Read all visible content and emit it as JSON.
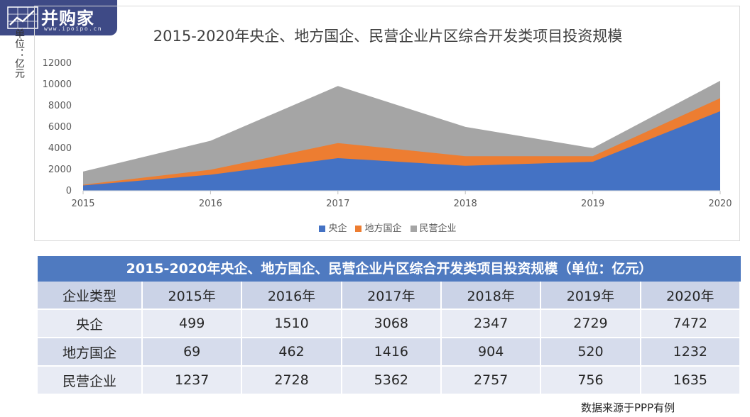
{
  "logo": {
    "name": "并购家",
    "site": "www.ipoipo.cn"
  },
  "unit_label": "单位：亿元",
  "chart_data": {
    "type": "area",
    "stacked": true,
    "title": "2015-2020年央企、地方国企、民营企业片区综合开发类项目投资规模",
    "x": [
      "2015",
      "2016",
      "2017",
      "2018",
      "2019",
      "2020"
    ],
    "ylim": [
      0,
      12000
    ],
    "yticks": [
      0,
      2000,
      4000,
      6000,
      8000,
      10000,
      12000
    ],
    "legend_position": "bottom",
    "grid": false,
    "series": [
      {
        "name": "央企",
        "values": [
          499,
          1510,
          3068,
          2347,
          2729,
          7472
        ],
        "color": "#4472c4"
      },
      {
        "name": "地方国企",
        "values": [
          69,
          462,
          1416,
          904,
          520,
          1232
        ],
        "color": "#ed7d31"
      },
      {
        "name": "民营企业",
        "values": [
          1237,
          2728,
          5362,
          2757,
          756,
          1635
        ],
        "color": "#a5a5a5"
      }
    ]
  },
  "table": {
    "title": "2015-2020年央企、地方国企、民营企业片区综合开发类项目投资规模（单位：亿元）",
    "headers": [
      "企业类型",
      "2015年",
      "2016年",
      "2017年",
      "2018年",
      "2019年",
      "2020年"
    ],
    "rows": [
      [
        "央企",
        "499",
        "1510",
        "3068",
        "2347",
        "2729",
        "7472"
      ],
      [
        "地方国企",
        "69",
        "462",
        "1416",
        "904",
        "520",
        "1232"
      ],
      [
        "民营企业",
        "1237",
        "2728",
        "5362",
        "2757",
        "756",
        "1635"
      ]
    ]
  },
  "source": "数据来源于PPP有例"
}
